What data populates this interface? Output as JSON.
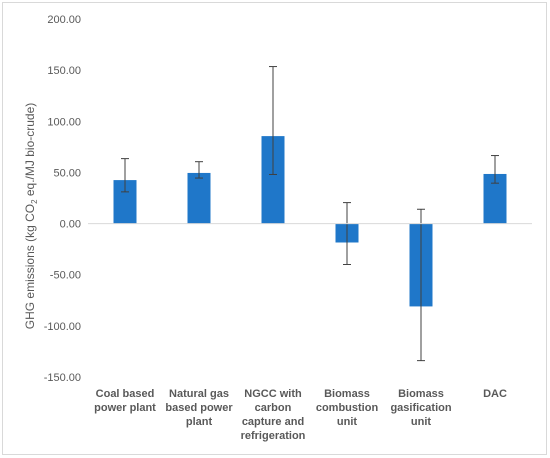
{
  "chart_data": {
    "type": "bar",
    "categories": [
      [
        "Coal based",
        "power plant"
      ],
      [
        "Natural gas",
        "based power",
        "plant"
      ],
      [
        "NGCC with",
        "carbon",
        "capture and",
        "refrigeration"
      ],
      [
        "Biomass",
        "combustion",
        "unit"
      ],
      [
        "Biomass",
        "gasification",
        "unit"
      ],
      [
        "DAC"
      ]
    ],
    "values": [
      42.5,
      49.5,
      85.5,
      -18.5,
      -81.0,
      48.5
    ],
    "error_low": [
      31.0,
      44.5,
      48.0,
      -40.0,
      -134.0,
      39.5
    ],
    "error_high": [
      63.5,
      60.5,
      153.5,
      20.5,
      14.0,
      66.5
    ],
    "ylabel_parts": [
      "GHG emissions (kg CO",
      "2",
      " eq./MJ bio-crude)"
    ],
    "ylim": [
      -150,
      200
    ],
    "yticks": [
      "200.00",
      "150.00",
      "100.00",
      "50.00",
      "0.00",
      "-50.00",
      "-100.00",
      "-150.00"
    ],
    "ytick_values": [
      200,
      150,
      100,
      50,
      0,
      -50,
      -100,
      -150
    ],
    "bar_color": "#1f77c9",
    "grid": false
  }
}
